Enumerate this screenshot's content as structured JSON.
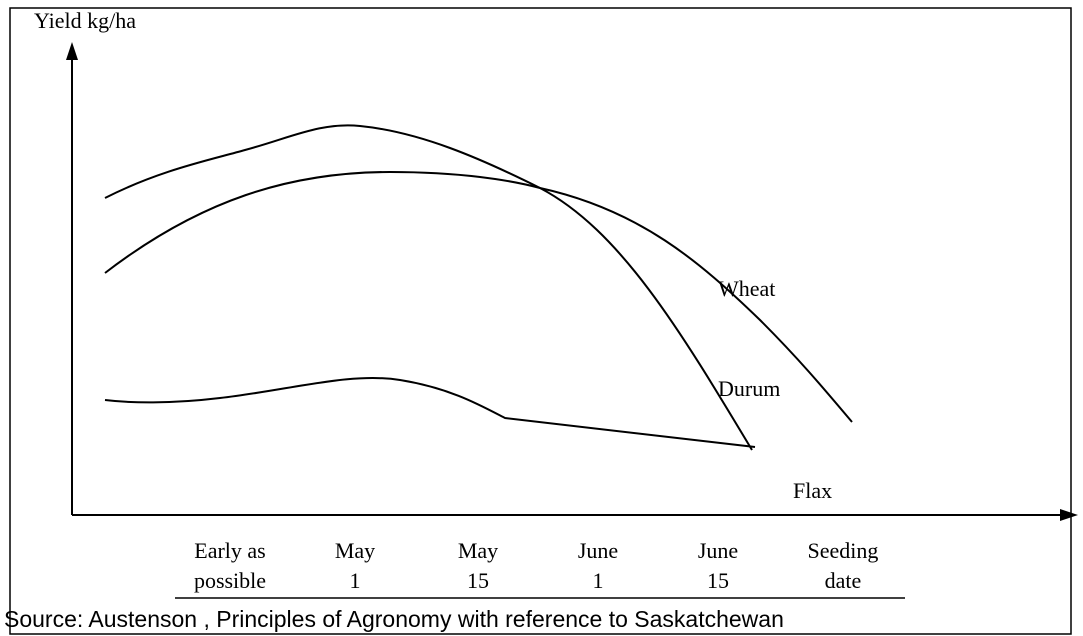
{
  "axis": {
    "y_label": "Yield kg/ha"
  },
  "curve_labels": {
    "wheat": "Wheat",
    "durum": "Durum",
    "flax": "Flax"
  },
  "x_labels": [
    [
      "Early as",
      "possible"
    ],
    [
      "May",
      "1"
    ],
    [
      "May",
      "15"
    ],
    [
      "June",
      "1"
    ],
    [
      "June",
      "15"
    ],
    [
      "Seeding",
      "date"
    ]
  ],
  "source": "Source: Austenson , Principles of Agronomy with reference to Saskatchewan"
}
